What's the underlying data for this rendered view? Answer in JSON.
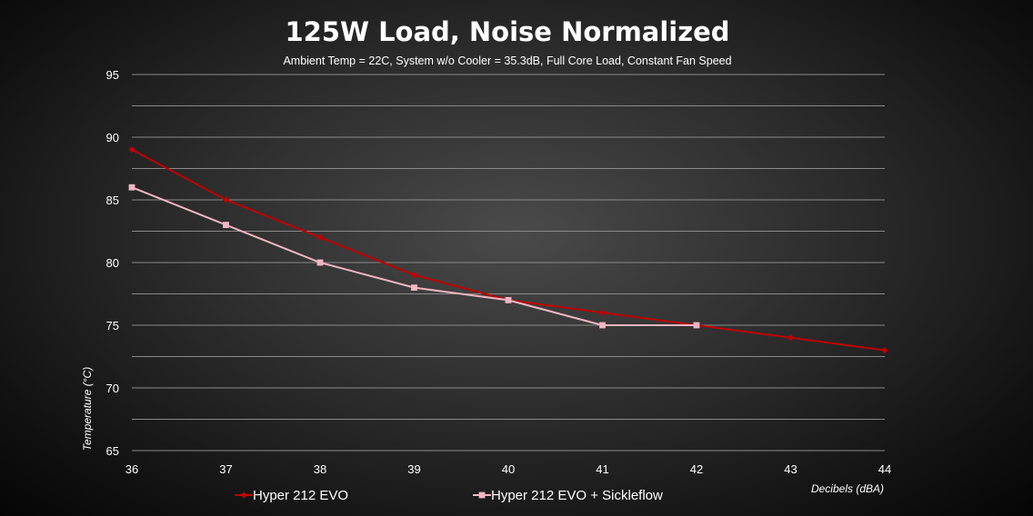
{
  "chart_data": {
    "type": "line",
    "title": "125W Load, Noise Normalized",
    "subtitle": "Ambient Temp = 22C, System w/o Cooler = 35.3dB, Full Core Load, Constant Fan Speed",
    "xlabel": "Decibels (dBA)",
    "ylabel": "Temperature (°C)",
    "x": [
      36,
      37,
      38,
      39,
      40,
      41,
      42,
      43,
      44
    ],
    "xlim": [
      36,
      44
    ],
    "ylim": [
      65,
      95
    ],
    "y_ticks": [
      65,
      70,
      75,
      80,
      85,
      90,
      95
    ],
    "grid": true,
    "legend_position": "bottom",
    "series": [
      {
        "name": "Hyper 212 EVO",
        "color": "#c00000",
        "marker": "diamond",
        "x": [
          36,
          37,
          38,
          39,
          40,
          41,
          42,
          43,
          44
        ],
        "values": [
          89,
          85,
          82,
          79,
          77,
          76,
          75,
          74,
          73
        ]
      },
      {
        "name": "Hyper 212 EVO + Sickleflow",
        "color": "#f4b6c2",
        "marker": "square",
        "x": [
          36,
          37,
          38,
          39,
          40,
          41,
          42
        ],
        "values": [
          86,
          83,
          80,
          78,
          77,
          75,
          75
        ]
      }
    ]
  }
}
